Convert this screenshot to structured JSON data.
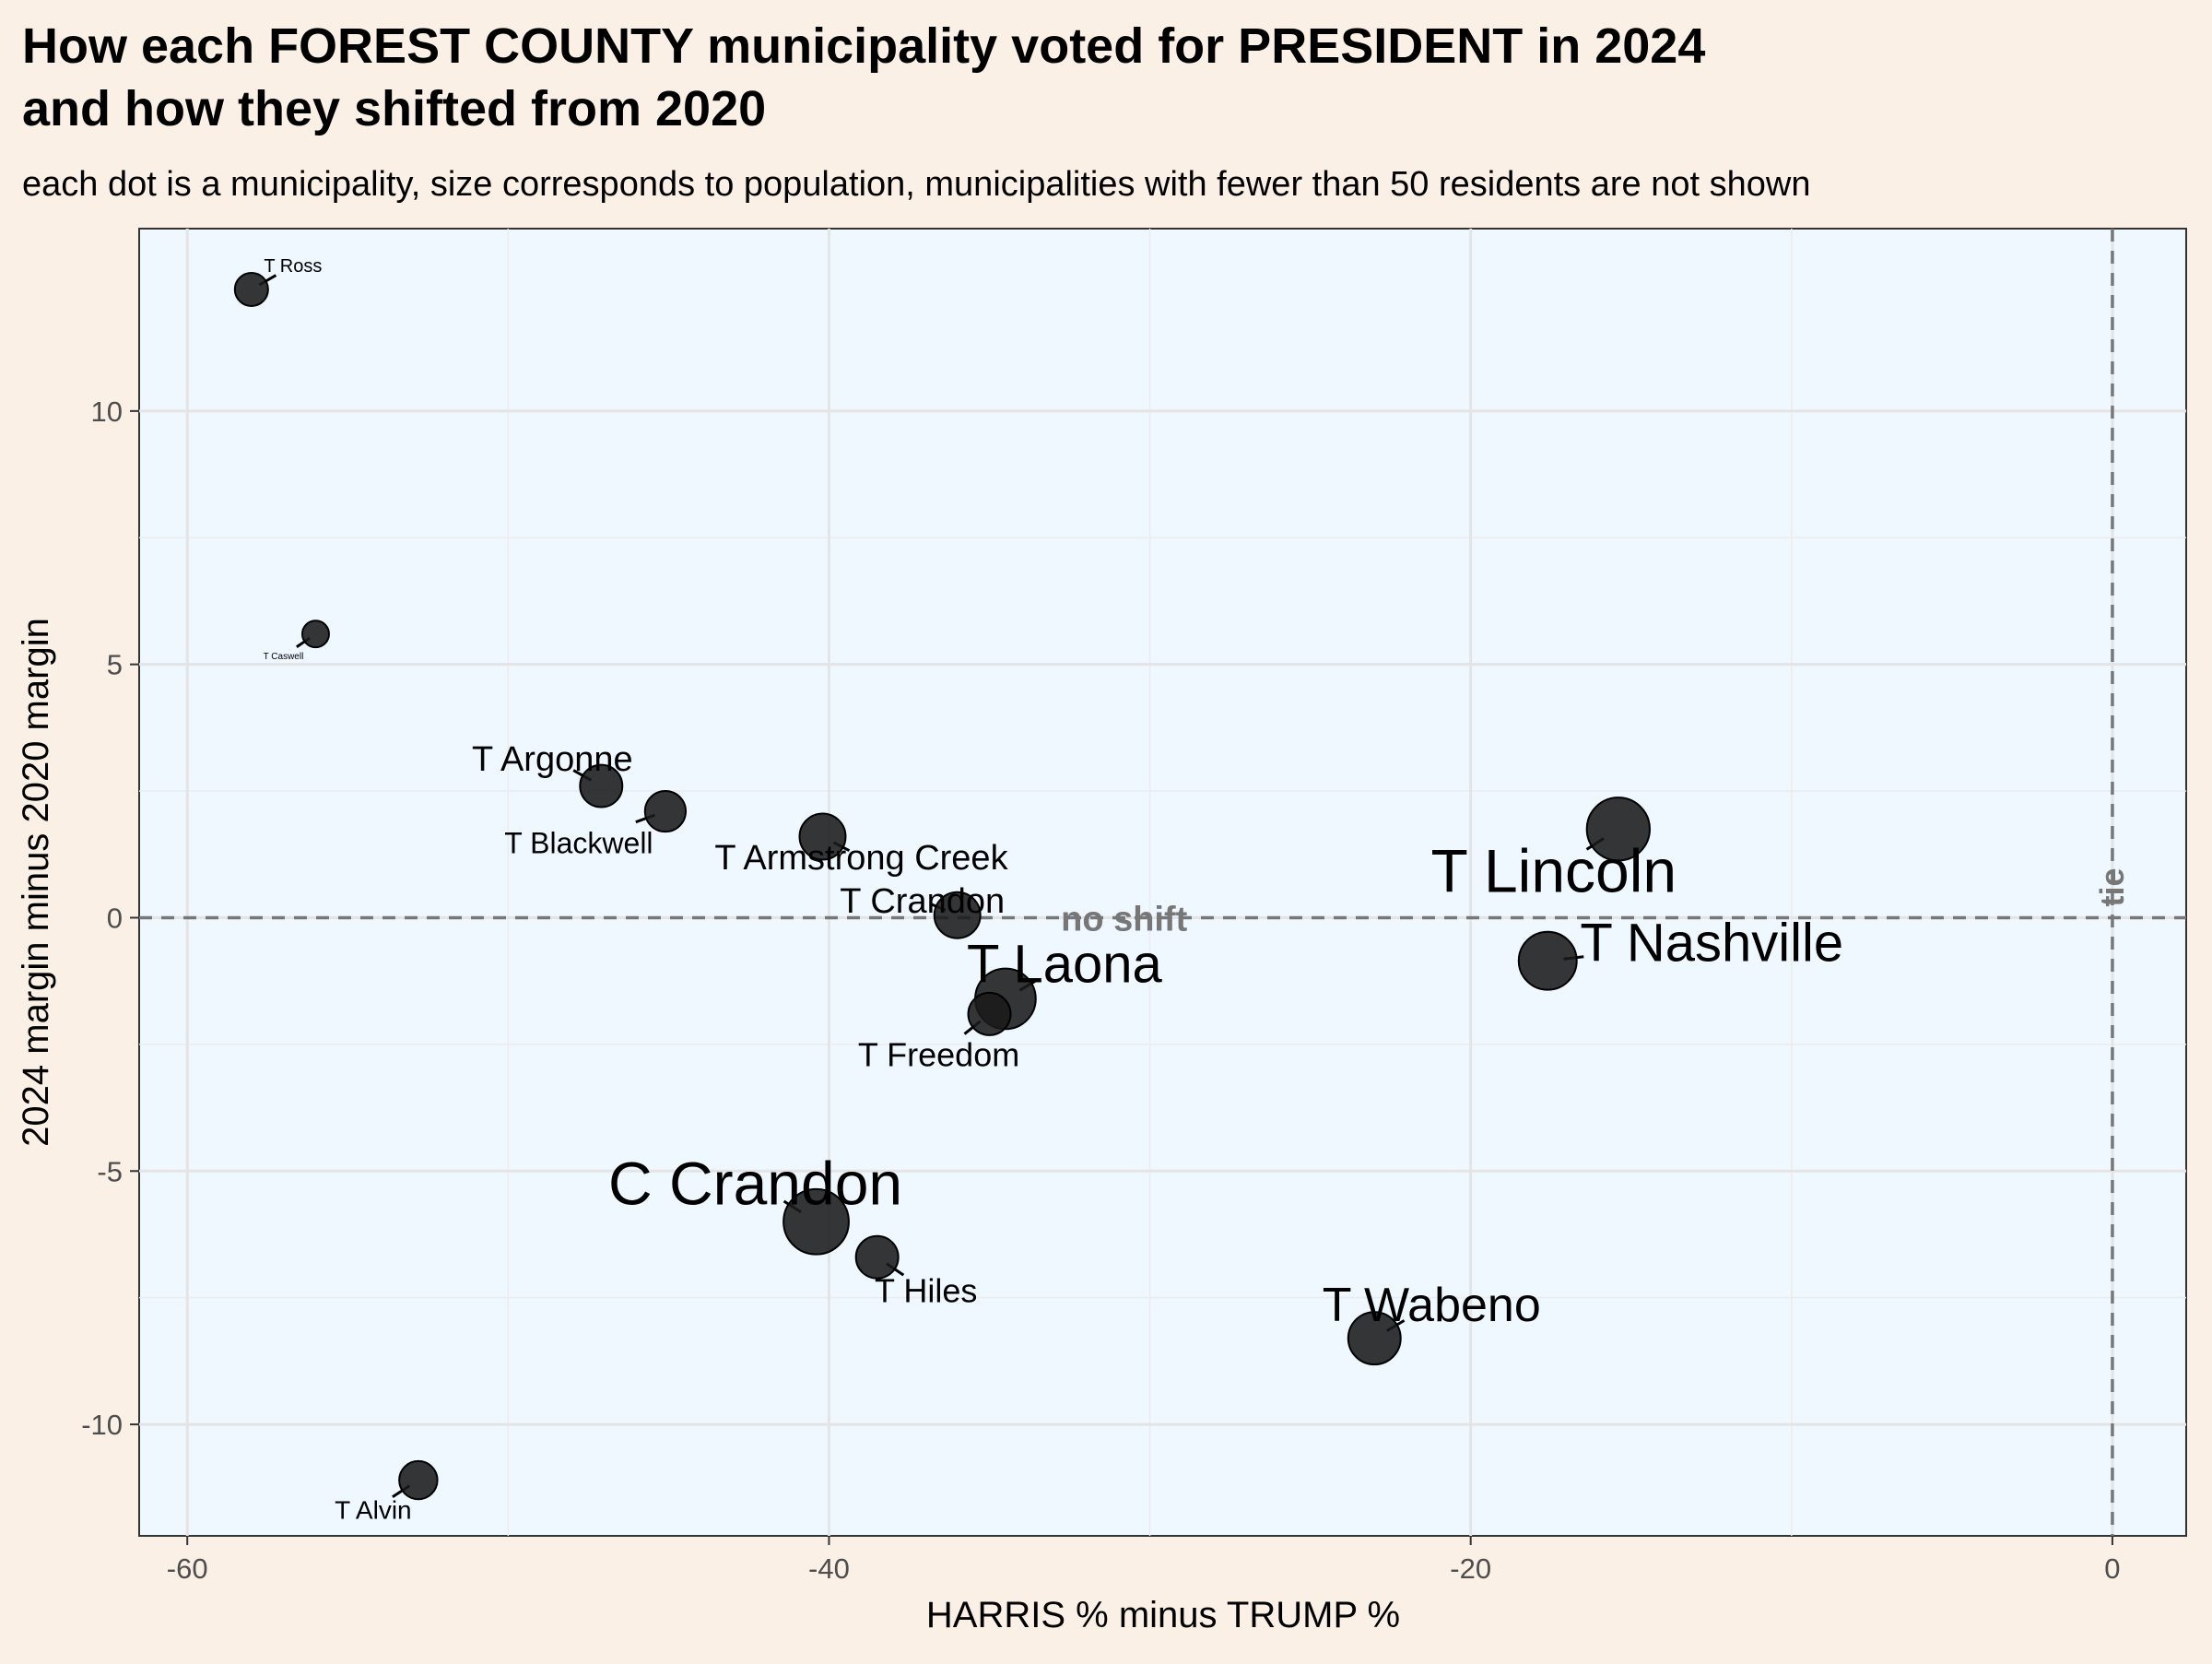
{
  "chart_data": {
    "type": "scatter",
    "title_line1": "How each FOREST COUNTY municipality voted for PRESIDENT in 2024",
    "title_line2": "and how they shifted from 2020",
    "subtitle": "each dot is a municipality, size corresponds to population, municipalities with fewer than 50 residents are not shown",
    "xlabel": "HARRIS % minus TRUMP %",
    "ylabel": "2024 margin minus 2020 margin",
    "xlim": [
      -61.5,
      2.3
    ],
    "ylim": [
      -12.2,
      13.6
    ],
    "x_ticks": [
      -60,
      -40,
      -20,
      0
    ],
    "x_tick_labels": [
      "-60",
      "-40",
      "-20",
      "0"
    ],
    "y_ticks": [
      -10,
      -5,
      0,
      5,
      10
    ],
    "y_tick_labels": [
      "-10",
      "-5",
      "0",
      "5",
      "10"
    ],
    "grid": true,
    "reference_lines": {
      "horizontal_label": "no shift",
      "vertical_label": "tie"
    },
    "colors": {
      "background": "#faf0e6",
      "panel": "#eff7ff",
      "point": "#1a1a1a",
      "reference_line": "#777777"
    },
    "points": [
      {
        "name": "T Ross",
        "x": -58.0,
        "y": 12.4,
        "size": 1
      },
      {
        "name": "T Caswell",
        "x": -56.0,
        "y": 5.6,
        "size": 0.5
      },
      {
        "name": "T Argonne",
        "x": -47.1,
        "y": 2.6,
        "size": 2
      },
      {
        "name": "T Blackwell",
        "x": -45.1,
        "y": 2.1,
        "size": 1.8
      },
      {
        "name": "T Armstrong Creek",
        "x": -40.2,
        "y": 1.6,
        "size": 2.5
      },
      {
        "name": "T Crandon",
        "x": -36.0,
        "y": 0.05,
        "size": 2.5
      },
      {
        "name": "T Laona",
        "x": -34.5,
        "y": -1.6,
        "size": 5
      },
      {
        "name": "T Freedom",
        "x": -35.0,
        "y": -1.9,
        "size": 2
      },
      {
        "name": "C Crandon",
        "x": -40.4,
        "y": -6.0,
        "size": 6
      },
      {
        "name": "T Hiles",
        "x": -38.5,
        "y": -6.7,
        "size": 2
      },
      {
        "name": "T Alvin",
        "x": -52.8,
        "y": -11.1,
        "size": 1.5
      },
      {
        "name": "T Lincoln",
        "x": -15.4,
        "y": 1.75,
        "size": 5.5
      },
      {
        "name": "T Nashville",
        "x": -17.6,
        "y": -0.85,
        "size": 4.5
      },
      {
        "name": "T Wabeno",
        "x": -23.0,
        "y": -8.3,
        "size": 3.5
      }
    ]
  }
}
